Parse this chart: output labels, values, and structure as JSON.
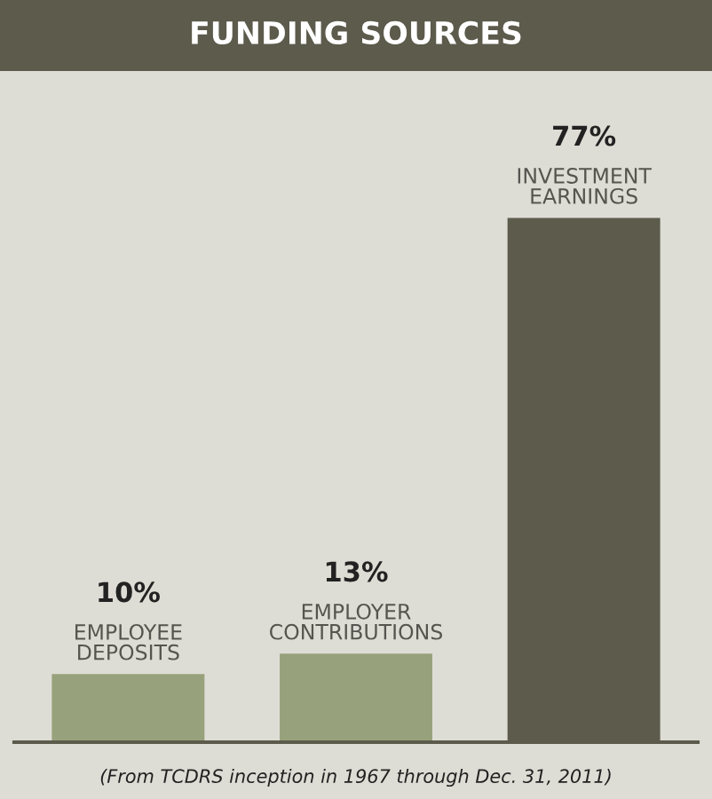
{
  "chart_data": {
    "type": "bar",
    "title": "FUNDING SOURCES",
    "categories": [
      "EMPLOYEE\nDEPOSITS",
      "EMPLOYER\nCONTRIBUTIONS",
      "INVESTMENT\nEARNINGS"
    ],
    "values": [
      10,
      13,
      77
    ],
    "value_labels": [
      "10%",
      "13%",
      "77%"
    ],
    "colors": [
      "#97a27c",
      "#97a27c",
      "#5c5b4c"
    ],
    "annotations": [
      "(From TCDRS inception in 1967 through Dec. 31, 2011)"
    ]
  }
}
